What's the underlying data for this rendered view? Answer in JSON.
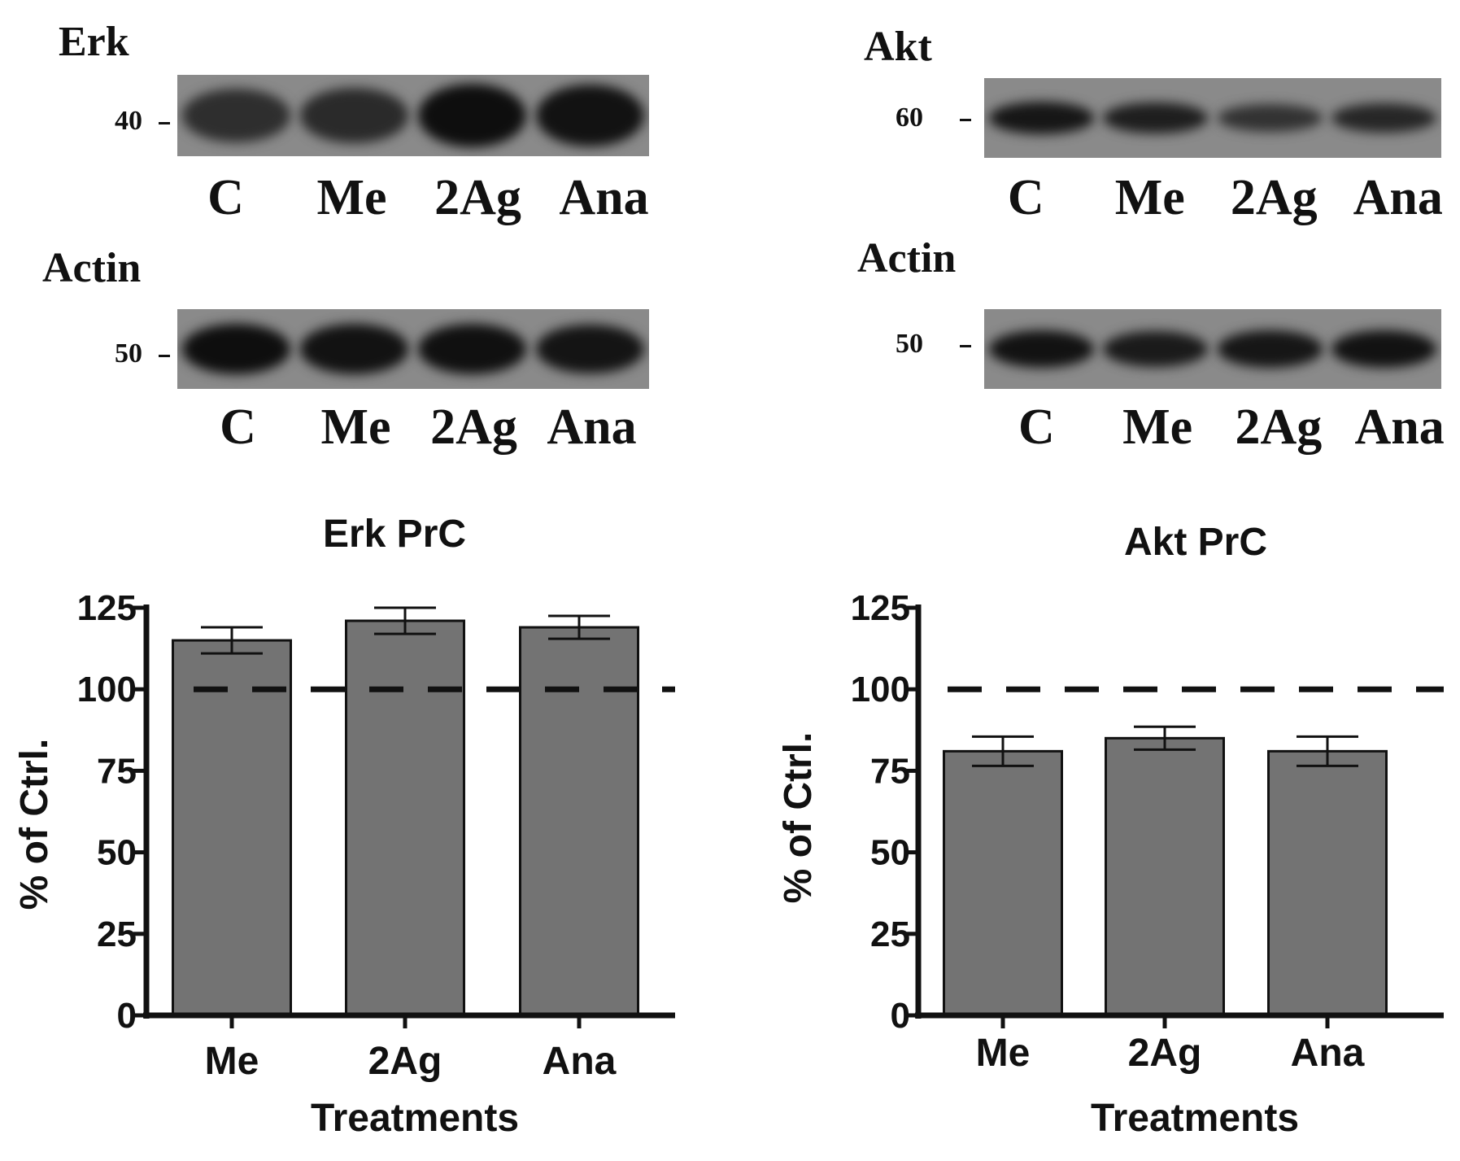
{
  "blots": [
    {
      "protein": "Erk",
      "protein_mw": "40",
      "loading_control": "Actin",
      "loading_mw": "50",
      "lanes": [
        "C",
        "Me",
        "2Ag",
        "Ana"
      ],
      "band_intensity": [
        0.55,
        0.6,
        0.95,
        0.9
      ],
      "loading_intensity": [
        0.95,
        0.9,
        0.92,
        0.88
      ]
    },
    {
      "protein": "Akt",
      "protein_mw": "60",
      "loading_control": "Actin",
      "loading_mw": "50",
      "lanes": [
        "C",
        "Me",
        "2Ag",
        "Ana"
      ],
      "band_intensity": [
        0.85,
        0.75,
        0.5,
        0.65
      ],
      "loading_intensity": [
        0.9,
        0.8,
        0.85,
        0.9
      ]
    }
  ],
  "chart_data": [
    {
      "type": "bar",
      "title": "Erk PrC",
      "xlabel": "Treatments",
      "ylabel": "% of Ctrl.",
      "categories": [
        "Me",
        "2Ag",
        "Ana"
      ],
      "values": [
        115,
        121,
        119
      ],
      "errors": [
        4,
        4,
        3.5
      ],
      "ylim": [
        0,
        125
      ],
      "yticks": [
        0,
        25,
        50,
        75,
        100,
        125
      ],
      "reference_line": 100,
      "bar_color": "#737373"
    },
    {
      "type": "bar",
      "title": "Akt PrC",
      "xlabel": "Treatments",
      "ylabel": "% of Ctrl.",
      "categories": [
        "Me",
        "2Ag",
        "Ana"
      ],
      "values": [
        81,
        85,
        81
      ],
      "errors": [
        4.5,
        3.5,
        4.5
      ],
      "ylim": [
        0,
        125
      ],
      "yticks": [
        0,
        25,
        50,
        75,
        100,
        125
      ],
      "reference_line": 100,
      "bar_color": "#737373"
    }
  ]
}
